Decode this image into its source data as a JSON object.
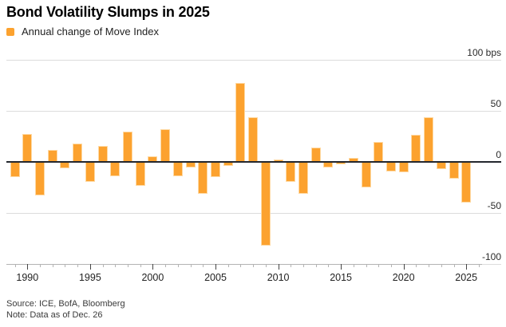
{
  "header": {
    "title": "Bond Volatility Slumps in 2025"
  },
  "legend": {
    "label": "Annual change of Move Index"
  },
  "footer": {
    "source": "Source: ICE, BofA, Bloomberg",
    "note": "Note: Data as of Dec. 26"
  },
  "colors": {
    "bar": "#FCA22F",
    "bar_edge": "#FED9A3",
    "grid": "#DCDCDC",
    "zero_line": "#23272E",
    "axis_line": "#B3B3B3",
    "axis_text": "#2B2B2B",
    "footer_text": "#3A3A3A"
  },
  "chart_data": {
    "type": "bar",
    "title": "Bond Volatility Slumps in 2025",
    "legend": [
      "Annual change of Move Index"
    ],
    "unit": "bps",
    "x": [
      1989,
      1990,
      1991,
      1992,
      1993,
      1994,
      1995,
      1996,
      1997,
      1998,
      1999,
      2000,
      2001,
      2002,
      2003,
      2004,
      2005,
      2006,
      2007,
      2008,
      2009,
      2010,
      2011,
      2012,
      2013,
      2014,
      2015,
      2016,
      2017,
      2018,
      2019,
      2020,
      2021,
      2022,
      2023,
      2024,
      2025
    ],
    "values": [
      -15,
      28,
      -33,
      12,
      -6,
      18,
      -19,
      16,
      -14,
      30,
      -23,
      6,
      32,
      -14,
      -5,
      -31,
      -15,
      -4,
      78,
      44,
      -82,
      3,
      -19,
      -31,
      14,
      -5,
      -2,
      4,
      -25,
      20,
      -9,
      -10,
      27,
      44,
      -7,
      -16,
      -40
    ],
    "ylim": [
      -100,
      100
    ],
    "yticks": [
      {
        "value": 100,
        "label": "100 bps"
      },
      {
        "value": 50,
        "label": "50"
      },
      {
        "value": 0,
        "label": "0"
      },
      {
        "value": -50,
        "label": "-50"
      },
      {
        "value": -100,
        "label": "-100"
      }
    ],
    "xticks": [
      1990,
      1995,
      2000,
      2005,
      2010,
      2015,
      2020,
      2025
    ],
    "minor_tick_years_extend_to": 2026,
    "grid": true,
    "legend_position": "top-left",
    "bar_color": "#FCA22F",
    "source": "ICE, BofA, Bloomberg",
    "note": "Data as of Dec. 26"
  }
}
